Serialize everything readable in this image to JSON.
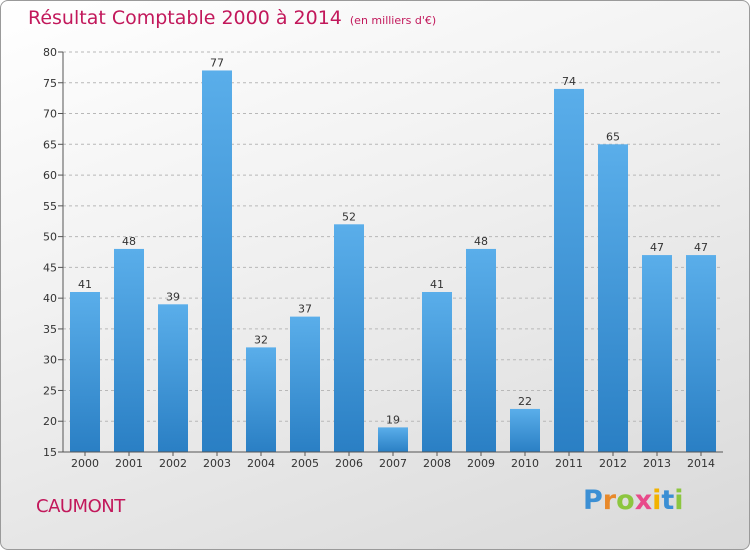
{
  "title": "Résultat Comptable 2000 à 2014",
  "subtitle": "(en milliers d'€)",
  "town": "CAUMONT",
  "logo": {
    "letters": [
      "P",
      "r",
      "o",
      "x",
      "i",
      "t",
      "i"
    ],
    "colors": [
      "#3b8fd4",
      "#e8892a",
      "#8cc63f",
      "#e84a8a",
      "#f2b200",
      "#3b8fd4",
      "#8cc63f"
    ]
  },
  "colors": {
    "bar_top": "#5aaeea",
    "bar_bottom": "#2a7fc4",
    "title": "#c2185b"
  },
  "chart_data": {
    "type": "bar",
    "categories": [
      "2000",
      "2001",
      "2002",
      "2003",
      "2004",
      "2005",
      "2006",
      "2007",
      "2008",
      "2009",
      "2010",
      "2011",
      "2012",
      "2013",
      "2014"
    ],
    "values": [
      41,
      48,
      39,
      77,
      32,
      37,
      52,
      19,
      41,
      48,
      22,
      74,
      65,
      47,
      47
    ],
    "ylim": [
      15,
      80
    ],
    "yticks": [
      15,
      20,
      25,
      30,
      35,
      40,
      45,
      50,
      55,
      60,
      65,
      70,
      75,
      80
    ],
    "grid": "horizontal-dashed"
  }
}
